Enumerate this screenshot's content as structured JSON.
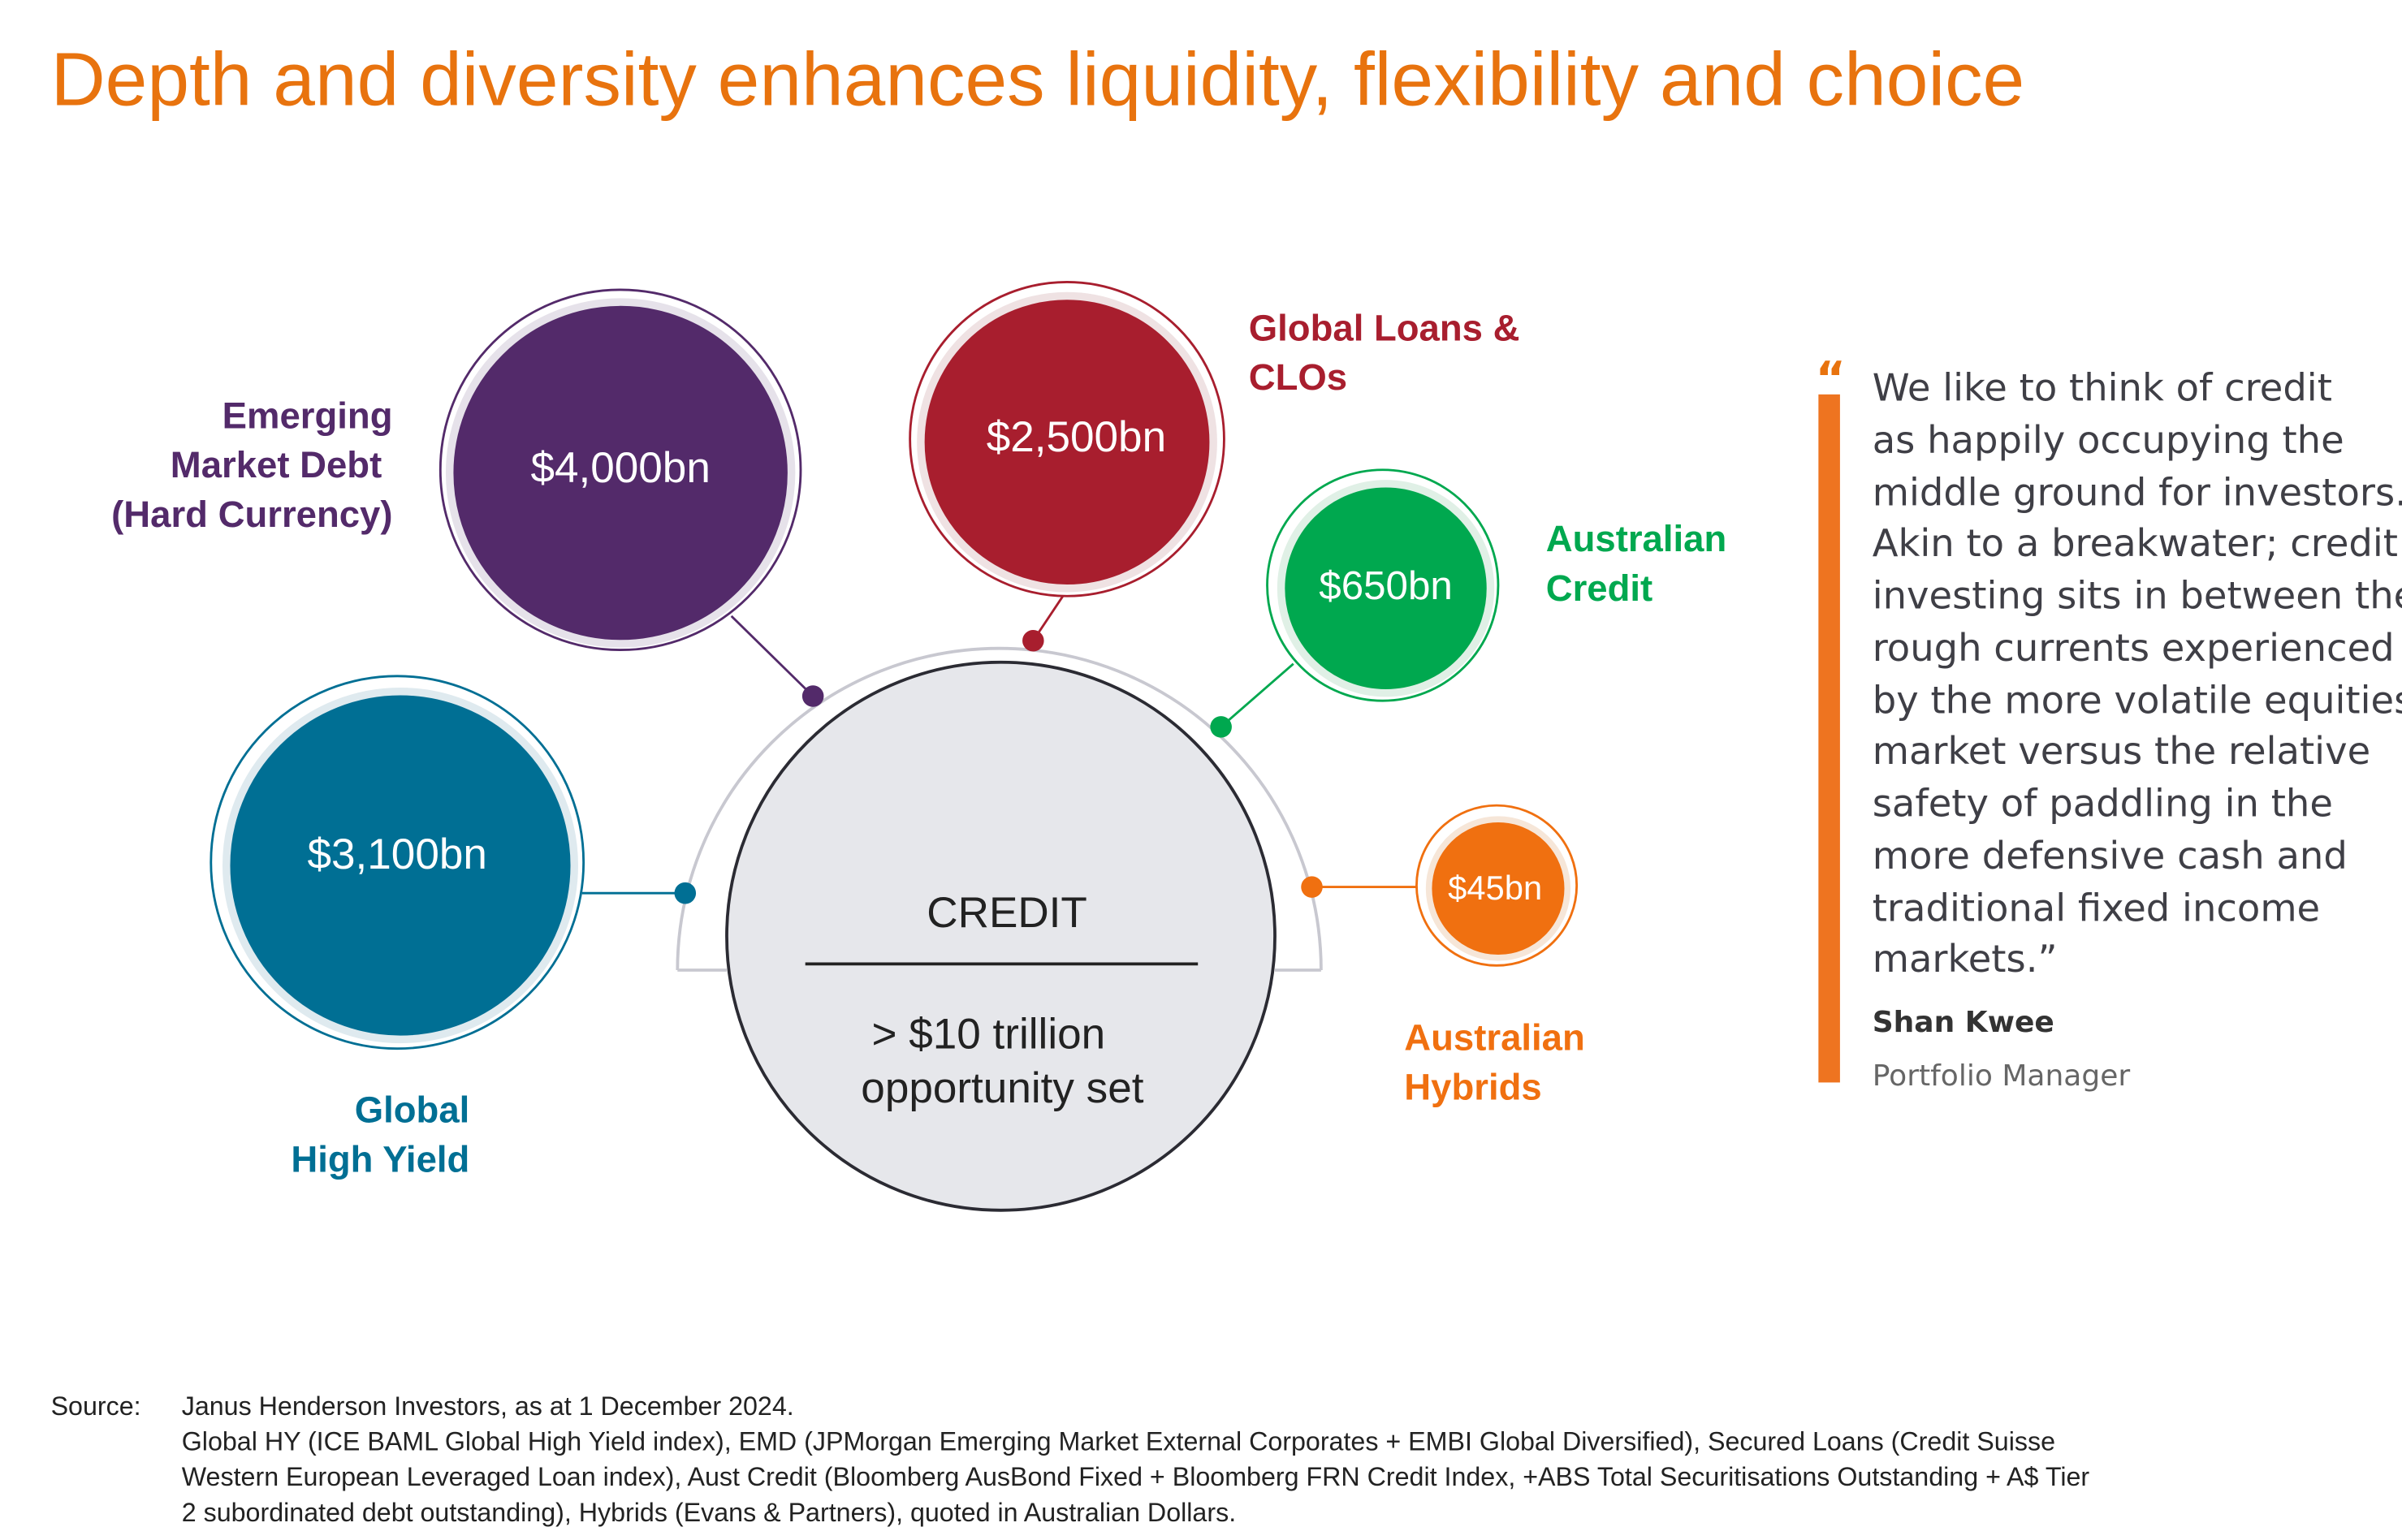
{
  "title": "Depth and diversity enhances liquidity, flexibility and choice",
  "center": {
    "label": "CREDIT",
    "line1": "> $10 trillion",
    "line2": "opportunity set"
  },
  "segments": [
    {
      "id": "emd",
      "value": "$4,000bn",
      "label_lines": [
        "Emerging",
        "Market Debt",
        "(Hard Currency)"
      ],
      "color": "#532A6A"
    },
    {
      "id": "loans",
      "value": "$2,500bn",
      "label_lines": [
        "Global Loans &",
        "CLOs"
      ],
      "color": "#A81E2E"
    },
    {
      "id": "aus-credit",
      "value": "$650bn",
      "label_lines": [
        "Australian",
        "Credit"
      ],
      "color": "#00A84F"
    },
    {
      "id": "hybrids",
      "value": "$45bn",
      "label_lines": [
        "Australian",
        "Hybrids"
      ],
      "color": "#F07010"
    },
    {
      "id": "high-yield",
      "value": "$3,100bn",
      "label_lines": [
        "Global",
        "High Yield"
      ],
      "color": "#006F94"
    }
  ],
  "quote": {
    "mark": "“",
    "lines": [
      "We like to think of credit",
      "as happily occupying the",
      "middle ground for investors.",
      "Akin to a breakwater; credit",
      "investing sits in between the",
      "rough currents experienced",
      "by the more volatile equities",
      "market versus the relative",
      "safety of paddling in the",
      "more defensive cash and",
      "traditional fixed income",
      "markets.”"
    ],
    "author": "Shan Kwee",
    "role": "Portfolio Manager"
  },
  "source": {
    "label": "Source:",
    "lines": [
      "Janus Henderson Investors, as at 1 December 2024.",
      "Global HY (ICE BAML Global High Yield index), EMD (JPMorgan Emerging Market External Corporates + EMBI Global Diversified), Secured Loans (Credit Suisse",
      "Western European Leveraged Loan index), Aust Credit (Bloomberg AusBond Fixed + Bloomberg FRN Credit Index, +ABS Total Securitisations Outstanding + A$ Tier",
      "2 subordinated debt outstanding), Hybrids (Evans & Partners), quoted in Australian Dollars."
    ]
  },
  "colors": {
    "accent": "#E8730E",
    "text": "#333333"
  }
}
